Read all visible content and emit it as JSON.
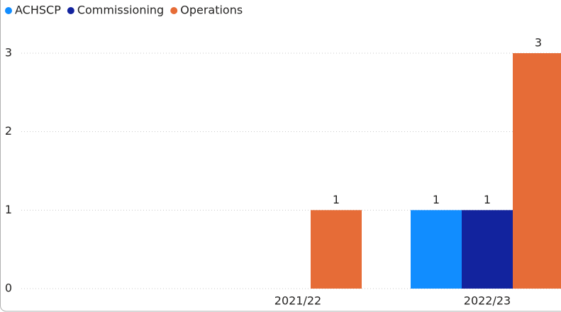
{
  "chart_data": {
    "type": "bar",
    "categories": [
      "2021/22",
      "2022/23"
    ],
    "series": [
      {
        "name": "ACHSCP",
        "color": "#118DFF",
        "values": [
          null,
          1
        ]
      },
      {
        "name": "Commissioning",
        "color": "#12239E",
        "values": [
          null,
          1
        ]
      },
      {
        "name": "Operations",
        "color": "#E66C37",
        "values": [
          1,
          3
        ]
      }
    ],
    "ylim": [
      0,
      3
    ],
    "yticks": [
      0,
      1,
      2,
      3
    ],
    "grid": true,
    "legend": "top-left"
  }
}
